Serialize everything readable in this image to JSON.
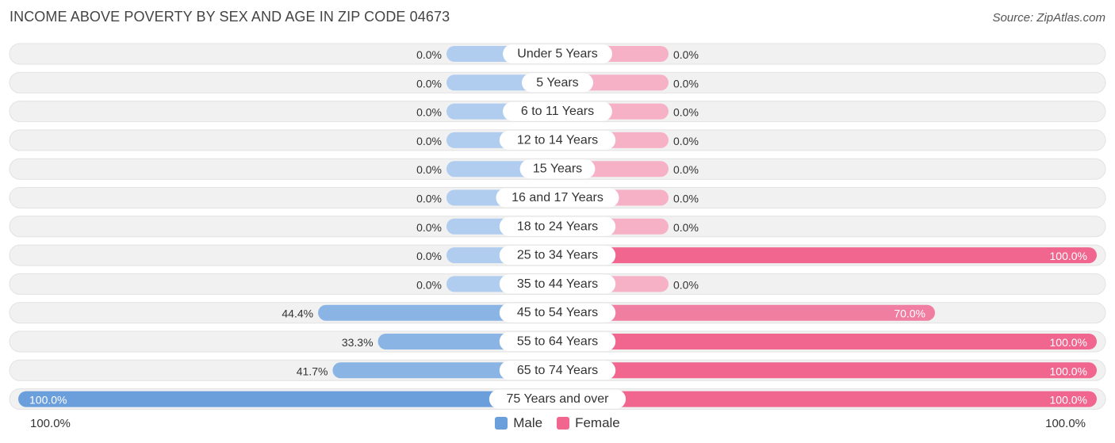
{
  "title": "INCOME ABOVE POVERTY BY SEX AND AGE IN ZIP CODE 04673",
  "source": "Source: ZipAtlas.com",
  "colors": {
    "male": "#89b4e4",
    "male_light": "#b0cdef",
    "male_full": "#6a9fdc",
    "female": "#f07ea1",
    "female_light": "#f6b1c6",
    "female_full": "#f0668f",
    "row_bg": "#f1f1f1",
    "row_border": "#e2e2e2"
  },
  "axis": {
    "left_label": "100.0%",
    "right_label": "100.0%"
  },
  "legend": {
    "male": "Male",
    "female": "Female"
  },
  "chart_data": {
    "type": "bar",
    "orientation": "horizontal-diverging",
    "xlim": [
      -100,
      100
    ],
    "categories": [
      "Under 5 Years",
      "5 Years",
      "6 to 11 Years",
      "12 to 14 Years",
      "15 Years",
      "16 and 17 Years",
      "18 to 24 Years",
      "25 to 34 Years",
      "35 to 44 Years",
      "45 to 54 Years",
      "55 to 64 Years",
      "65 to 74 Years",
      "75 Years and over"
    ],
    "series": [
      {
        "name": "Male",
        "values": [
          0.0,
          0.0,
          0.0,
          0.0,
          0.0,
          0.0,
          0.0,
          0.0,
          0.0,
          44.4,
          33.3,
          41.7,
          100.0
        ],
        "labels": [
          "0.0%",
          "0.0%",
          "0.0%",
          "0.0%",
          "0.0%",
          "0.0%",
          "0.0%",
          "0.0%",
          "0.0%",
          "44.4%",
          "33.3%",
          "41.7%",
          "100.0%"
        ]
      },
      {
        "name": "Female",
        "values": [
          0.0,
          0.0,
          0.0,
          0.0,
          0.0,
          0.0,
          0.0,
          100.0,
          0.0,
          70.0,
          100.0,
          100.0,
          100.0
        ],
        "labels": [
          "0.0%",
          "0.0%",
          "0.0%",
          "0.0%",
          "0.0%",
          "0.0%",
          "0.0%",
          "100.0%",
          "0.0%",
          "70.0%",
          "100.0%",
          "100.0%",
          "100.0%"
        ]
      }
    ]
  }
}
